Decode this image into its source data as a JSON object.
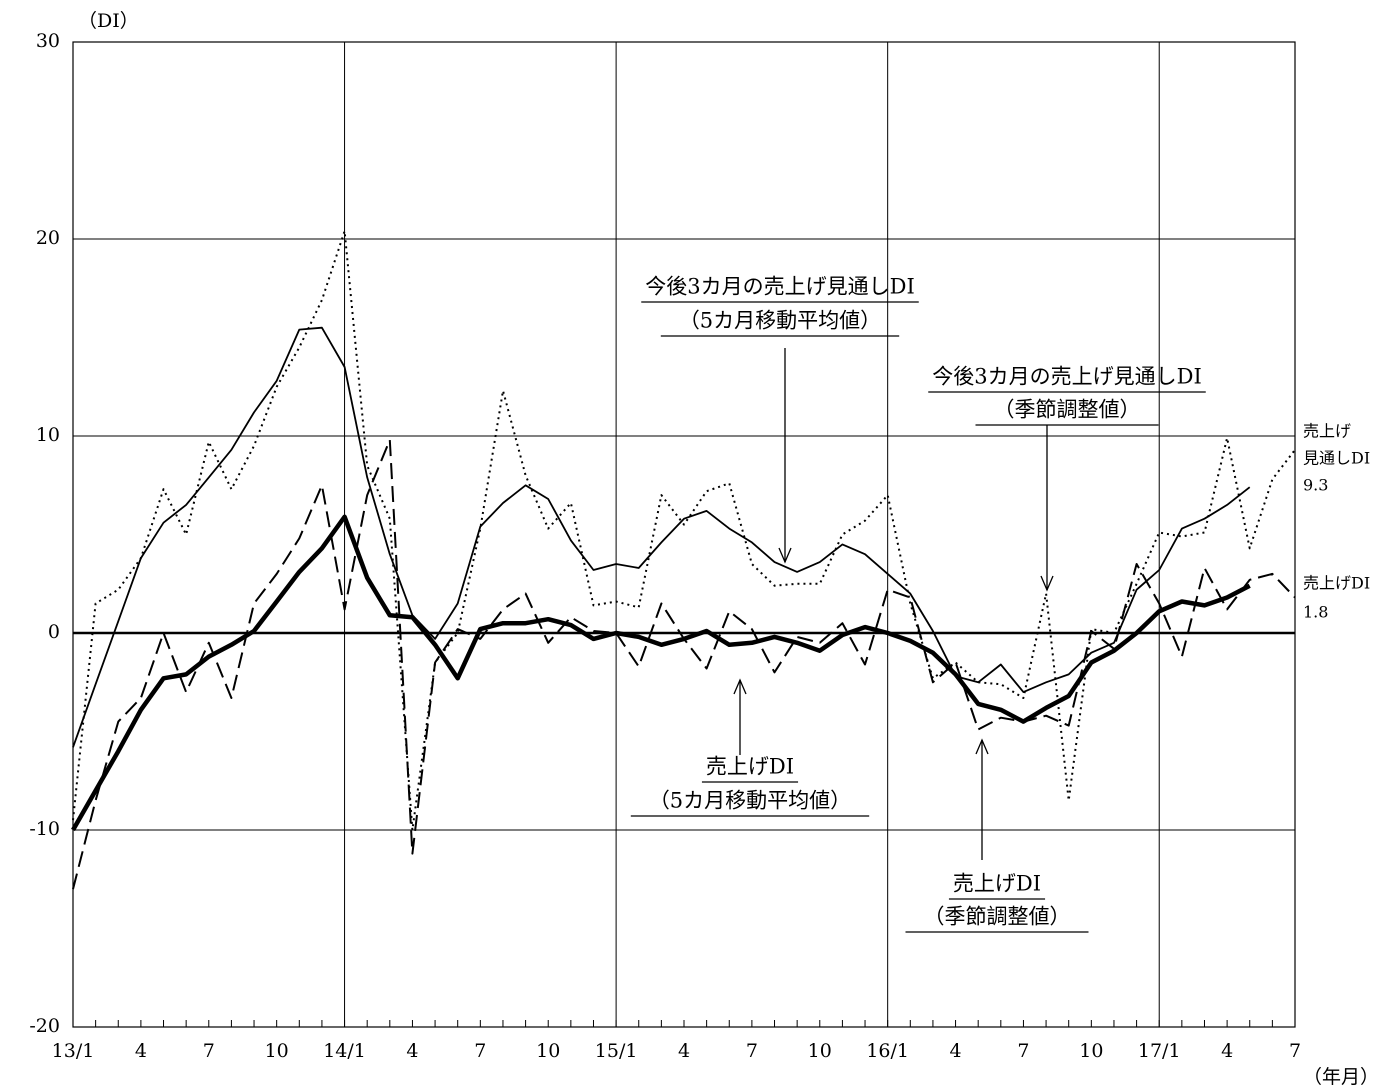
{
  "chart_data": {
    "type": "line",
    "y_label": "（DI）",
    "x_label": "（年月）",
    "categories": [
      "13/1",
      null,
      null,
      "4",
      null,
      null,
      "7",
      null,
      null,
      "10",
      null,
      null,
      "14/1",
      null,
      null,
      "4",
      null,
      null,
      "7",
      null,
      null,
      "10",
      null,
      null,
      "15/1",
      null,
      null,
      "4",
      null,
      null,
      "7",
      null,
      null,
      "10",
      null,
      null,
      "16/1",
      null,
      null,
      "4",
      null,
      null,
      "7",
      null,
      null,
      "10",
      null,
      null,
      "17/1",
      null,
      null,
      "4",
      null,
      null,
      "7"
    ],
    "ylim": [
      -20,
      30
    ],
    "yticks": [
      -20,
      -10,
      0,
      10,
      20,
      30
    ],
    "grid": true,
    "series": [
      {
        "style": "dashed",
        "color": "#000000",
        "values": [
          -13,
          -8.5,
          -4.5,
          -3.3,
          0.0,
          -3.0,
          -0.5,
          -3.3,
          1.5,
          3.0,
          4.8,
          7.5,
          1.2,
          7.0,
          9.8,
          -11.2,
          -1.5,
          0.2,
          -0.3,
          1.2,
          2.0,
          -0.5,
          0.8,
          0.1,
          0.0,
          -1.7,
          1.5,
          -0.3,
          -1.8,
          1.1,
          0.2,
          -2.0,
          -0.2,
          -0.5,
          0.5,
          -1.6,
          2.2,
          1.8,
          -2.5,
          -1.5,
          -4.9,
          -4.3,
          -4.5,
          -4.2,
          -4.7,
          0.1,
          -0.8,
          3.5,
          1.5,
          -1.2,
          3.3,
          1.2,
          2.7,
          3.0,
          1.8
        ]
      },
      {
        "style": "thick",
        "color": "#000000",
        "values": [
          -10,
          -8,
          -6,
          -3.9,
          -2.3,
          -2.1,
          -1.2,
          -0.6,
          0.1,
          1.6,
          3.1,
          4.3,
          5.9,
          2.8,
          0.9,
          0.8,
          -0.6,
          -2.3,
          0.2,
          0.5,
          0.5,
          0.7,
          0.4,
          -0.3,
          0.0,
          -0.2,
          -0.6,
          -0.3,
          0.1,
          -0.6,
          -0.5,
          -0.2,
          -0.5,
          -0.9,
          -0.1,
          0.3,
          0.0,
          -0.4,
          -1.0,
          -2.1,
          -3.6,
          -3.9,
          -4.5,
          -3.8,
          -3.2,
          -1.5,
          -0.9,
          0.0,
          1.1,
          1.6,
          1.4,
          1.8,
          2.4,
          null,
          null
        ]
      },
      {
        "style": "dotted",
        "color": "#000000",
        "values": [
          -9.5,
          1.5,
          2.2,
          3.8,
          7.3,
          5.0,
          9.7,
          7.3,
          9.5,
          12.5,
          14.5,
          16.9,
          20.4,
          8.5,
          5.8,
          -10,
          -1.5,
          0.0,
          5.3,
          12.3,
          8.0,
          5.3,
          6.6,
          1.4,
          1.6,
          1.3,
          7.0,
          5.5,
          7.2,
          7.6,
          3.5,
          2.4,
          2.5,
          2.5,
          5.0,
          5.7,
          7.0,
          1.5,
          -2.3,
          -1.5,
          -2.5,
          -2.6,
          -3.3,
          2.0,
          -8.5,
          0.2,
          0.0,
          2.5,
          5.1,
          4.9,
          5.1,
          9.9,
          4.3,
          7.8,
          9.3
        ]
      },
      {
        "style": "solid",
        "color": "#000000",
        "values": [
          -5.8,
          -2.6,
          0.6,
          3.8,
          5.6,
          6.5,
          7.9,
          9.3,
          11.2,
          12.8,
          15.4,
          15.5,
          13.5,
          7.9,
          4.0,
          0.9,
          -0.3,
          1.5,
          5.4,
          6.6,
          7.5,
          6.8,
          4.7,
          3.2,
          3.5,
          3.3,
          4.6,
          5.8,
          6.2,
          5.3,
          4.6,
          3.6,
          3.1,
          3.6,
          4.5,
          4.0,
          3.0,
          2.0,
          0.1,
          -2.2,
          -2.5,
          -1.6,
          -3.0,
          -2.5,
          -2.1,
          -1.0,
          -0.5,
          2.2,
          3.2,
          5.3,
          5.8,
          6.5,
          7.4,
          null,
          null
        ]
      }
    ],
    "annotations": [
      {
        "lines": [
          "今後3カ月の売上げ見通しDI",
          "（5カ月移動平均値）"
        ]
      },
      {
        "lines": [
          "今後3カ月の売上げ見通しDI",
          "（季節調整値）"
        ]
      },
      {
        "lines": [
          "売上げDI",
          "（5カ月移動平均値）"
        ]
      },
      {
        "lines": [
          "売上げDI",
          "（季節調整値）"
        ]
      },
      {
        "lines": [
          "売上げ",
          "見通しDI",
          "9.3"
        ]
      },
      {
        "lines": [
          "売上げDI",
          "1.8"
        ]
      }
    ]
  }
}
